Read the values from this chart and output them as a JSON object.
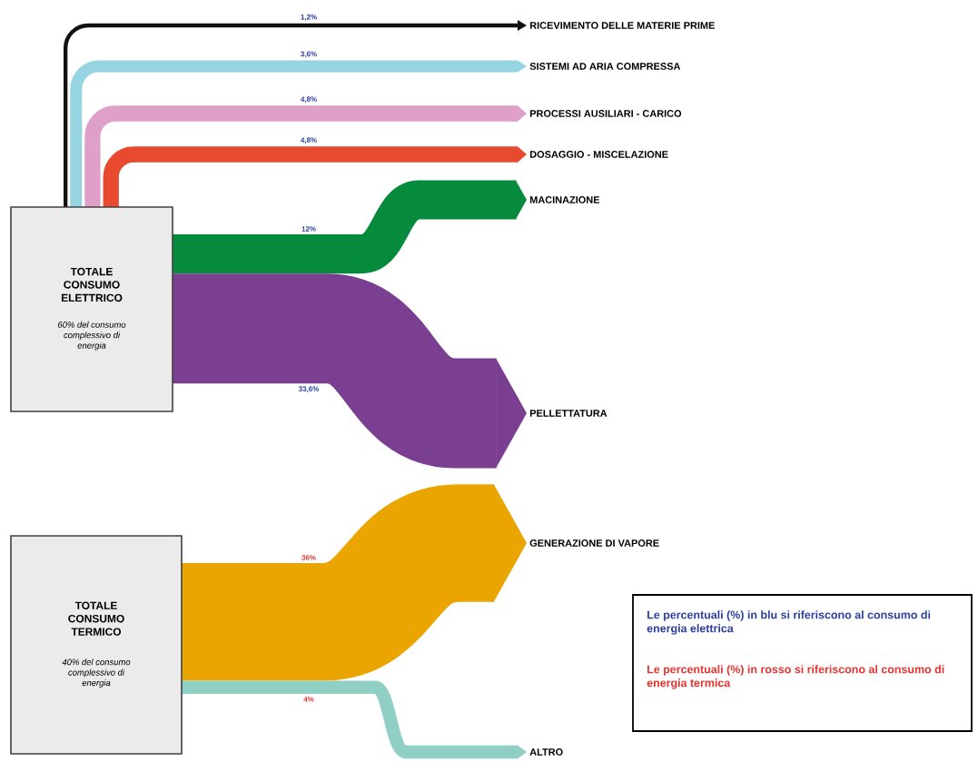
{
  "chart_data": {
    "type": "other",
    "categories": [
      "RICEVIMENTO DELLE MATERIE PRIME",
      "SISTEMI AD ARIA COMPRESSA",
      "PROCESSI AUSILIARI - CARICO",
      "DOSAGGIO - MISCELAZIONE",
      "MACINAZIONE",
      "PELLETTATURA",
      "GENERAZIONE DI VAPORE",
      "ALTRO"
    ],
    "colors": [
      "#111111",
      "#97d4e2",
      "#dea0c8",
      "#e84a2f",
      "#068a3c",
      "#7a3f91",
      "#eaa500",
      "#8fcfc4"
    ],
    "series": [
      {
        "name": "TOTALE CONSUMO ELETTRICO",
        "values": [
          1.2,
          3.6,
          4.8,
          4.8,
          12,
          33.6,
          null,
          null
        ],
        "value_labels": [
          "1,2%",
          "3,6%",
          "4,8%",
          "4,8%",
          "12%",
          "33,6%",
          null,
          null
        ]
      },
      {
        "name": "TOTALE CONSUMO TERMICO",
        "values": [
          null,
          null,
          null,
          null,
          null,
          null,
          36,
          4
        ],
        "value_labels": [
          null,
          null,
          null,
          null,
          null,
          null,
          "36%",
          "4%"
        ]
      }
    ],
    "annotations": [
      "60% del consumo complessivo di energia",
      "40% del consumo complessivo di energia",
      "Le percentuali (%) in blu si riferiscono al consumo di energia elettrica",
      "Le percentuali (%) in rosso si riferiscono al consumo di energia termica"
    ]
  }
}
